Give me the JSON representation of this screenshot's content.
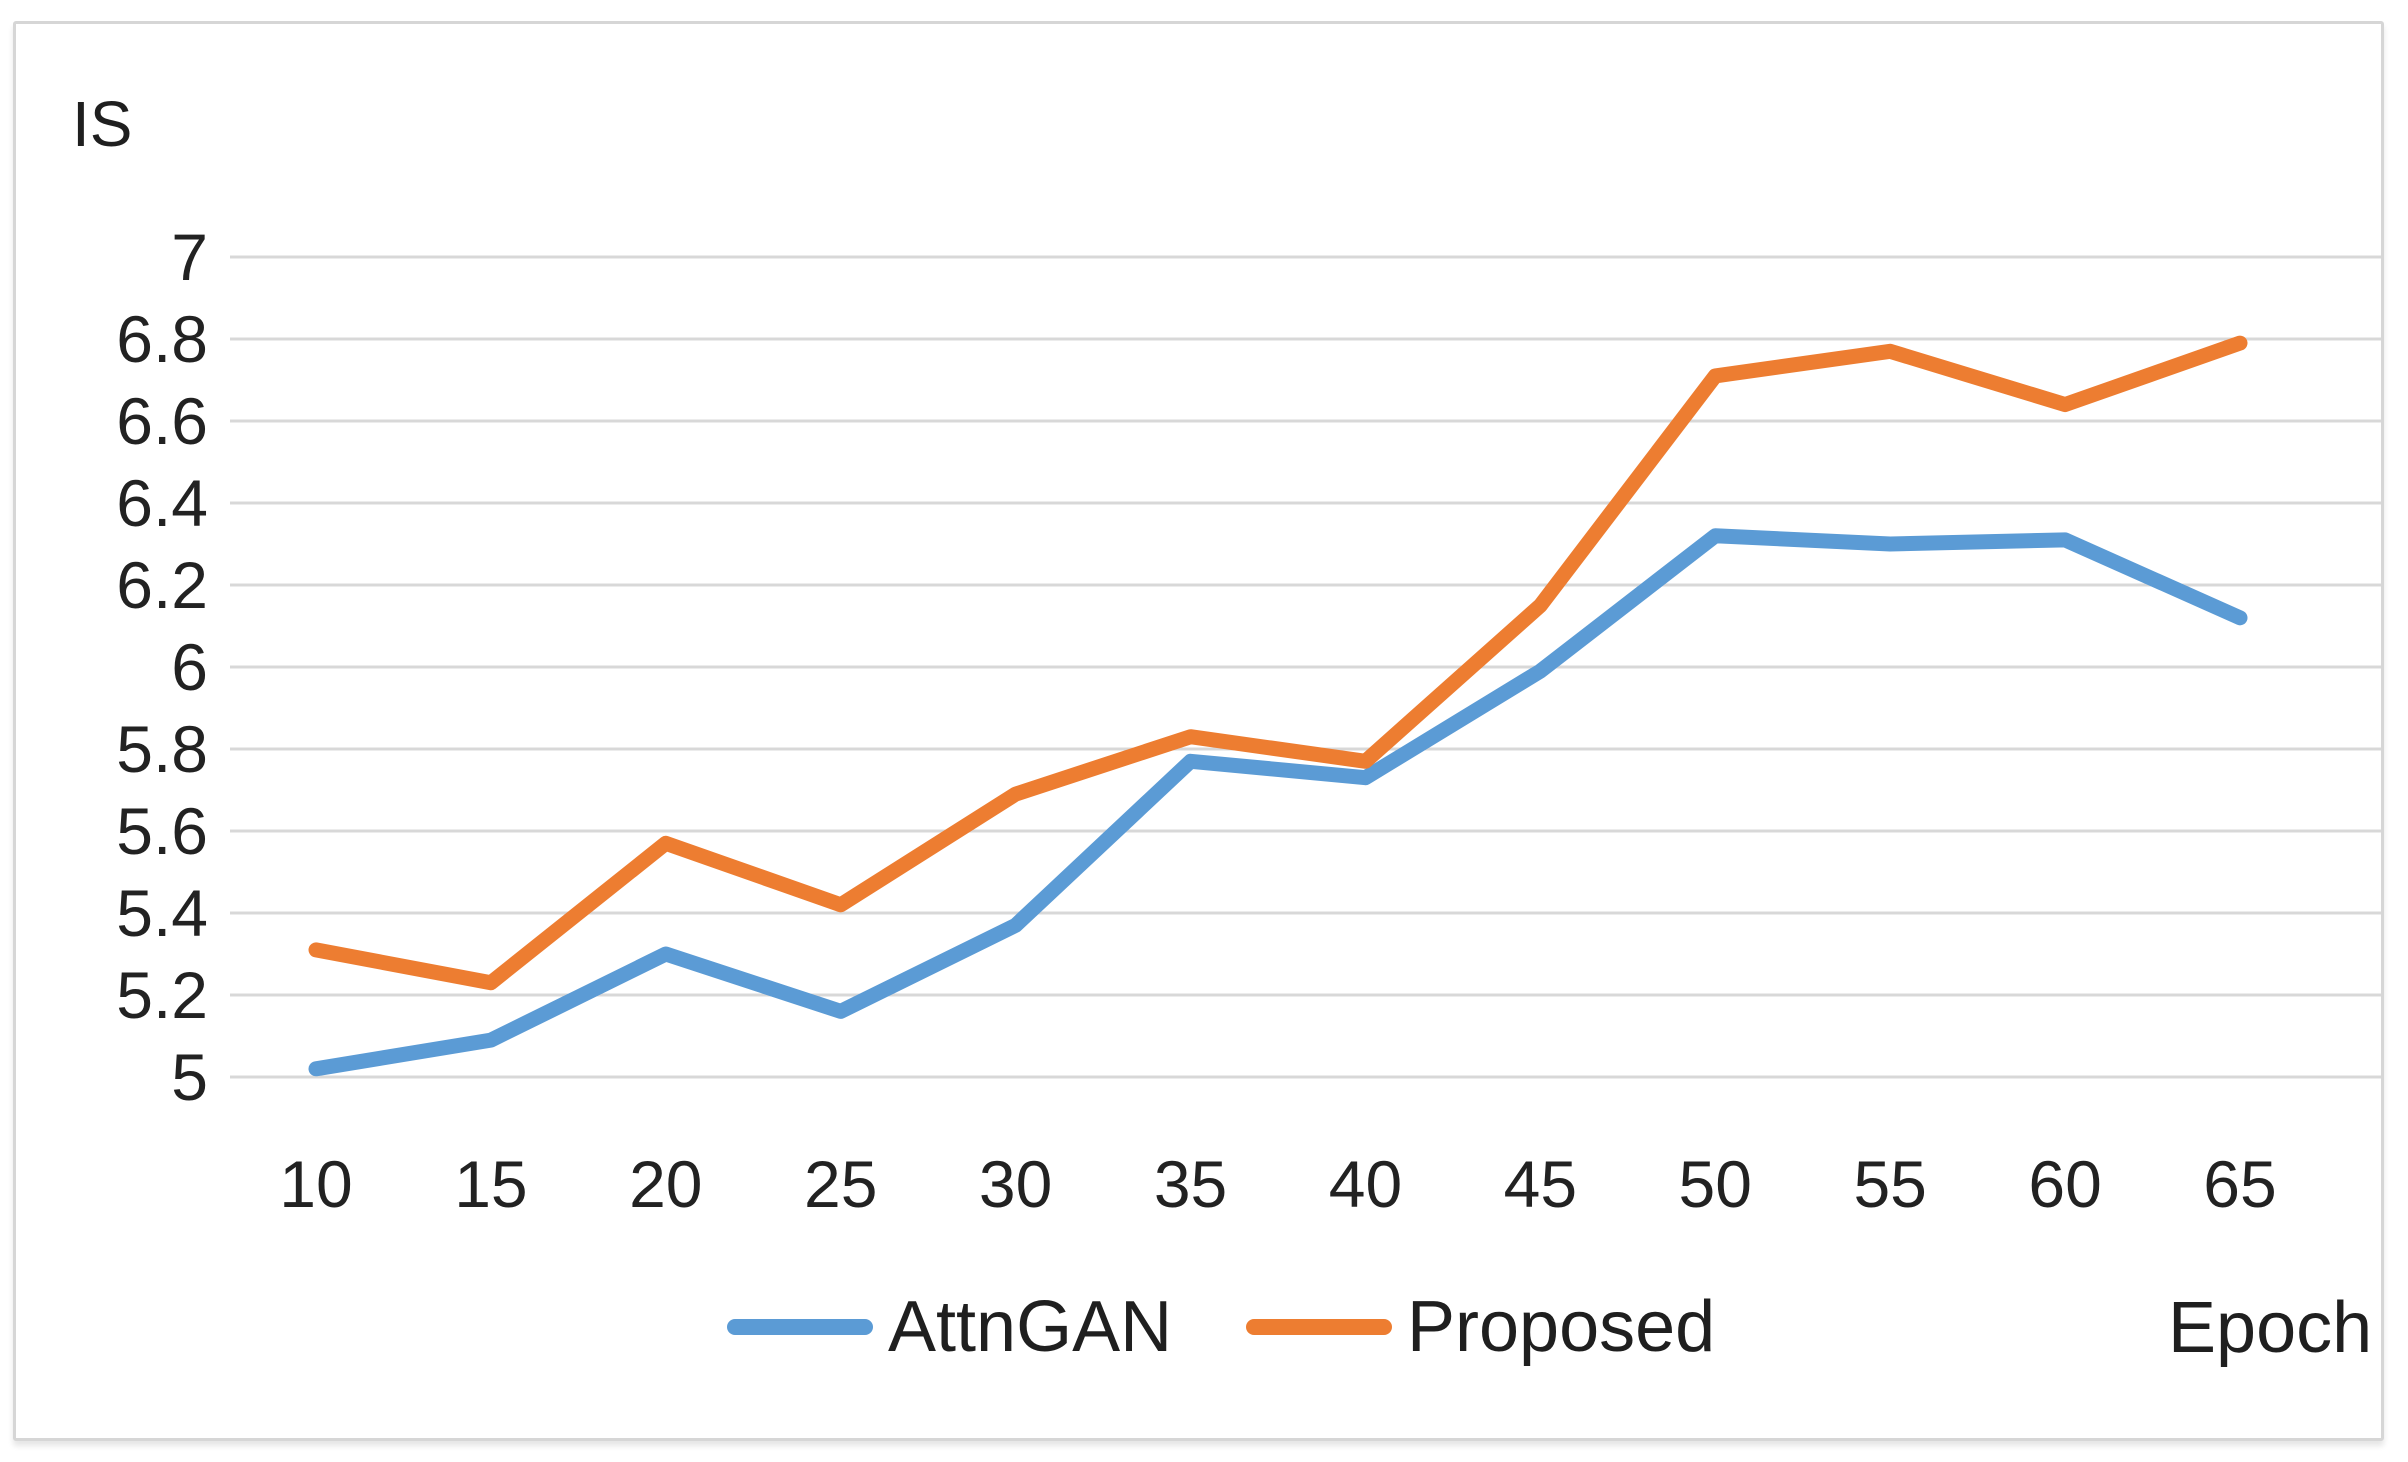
{
  "figure": {
    "y_axis_title": "IS",
    "x_axis_title": "Epoch"
  },
  "colors": {
    "attngan_blue": "#5B9BD5",
    "proposed_orange": "#ED7D31",
    "gridline_gray": "#D8D8D8",
    "frame_gray": "#D6D6D6",
    "text_dark": "#1F1F1F",
    "background": "#FFFFFF"
  },
  "chart_data": {
    "type": "line",
    "title": "",
    "xlabel": "Epoch",
    "ylabel": "IS",
    "x": [
      10,
      15,
      20,
      25,
      30,
      35,
      40,
      45,
      50,
      55,
      60,
      65
    ],
    "series": [
      {
        "name": "AttnGAN",
        "color": "#5B9BD5",
        "values": [
          5.02,
          5.09,
          5.3,
          5.16,
          5.37,
          5.77,
          5.73,
          5.99,
          6.32,
          6.3,
          6.31,
          6.12
        ]
      },
      {
        "name": "Proposed",
        "color": "#ED7D31",
        "values": [
          5.31,
          5.23,
          5.57,
          5.42,
          5.69,
          5.83,
          5.77,
          6.15,
          6.71,
          6.77,
          6.64,
          6.79
        ]
      }
    ],
    "ylim": [
      5,
      7
    ],
    "ytick_step": 0.2,
    "yticks": [
      "7",
      "6.8",
      "6.6",
      "6.4",
      "6.2",
      "6",
      "5.8",
      "5.6",
      "5.4",
      "5.2",
      "5"
    ],
    "grid": true,
    "legend_position": "bottom"
  }
}
